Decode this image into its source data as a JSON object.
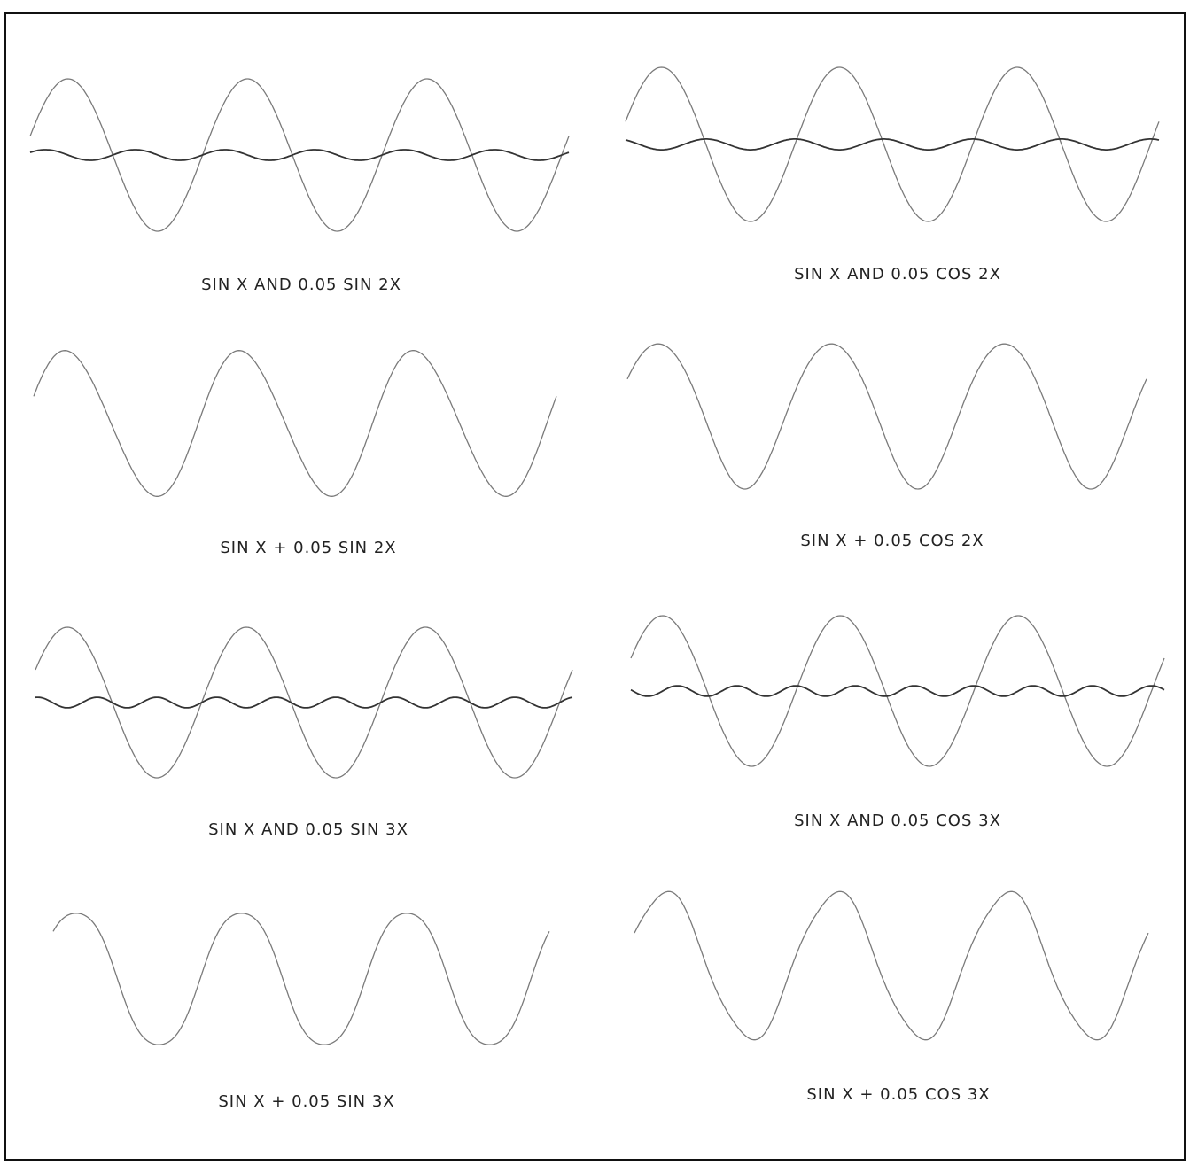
{
  "figure": {
    "panels": [
      {
        "id": "p0",
        "caption": "SIN X AND 0.05 SIN 2X",
        "mode": "pair",
        "harmonic": 2,
        "func": "sin",
        "amplitude": 0.05
      },
      {
        "id": "p1",
        "caption": "SIN X AND 0.05 COS 2X",
        "mode": "pair",
        "harmonic": 2,
        "func": "cos",
        "amplitude": 0.05
      },
      {
        "id": "p2",
        "caption": "SIN X + 0.05 SIN 2X",
        "mode": "sum",
        "harmonic": 2,
        "func": "sin",
        "amplitude": 0.05
      },
      {
        "id": "p3",
        "caption": "SIN X + 0.05 COS 2X",
        "mode": "sum",
        "harmonic": 2,
        "func": "cos",
        "amplitude": 0.05
      },
      {
        "id": "p4",
        "caption": "SIN X AND 0.05 SIN 3X",
        "mode": "pair",
        "harmonic": 3,
        "func": "sin",
        "amplitude": 0.05
      },
      {
        "id": "p5",
        "caption": "SIN X AND 0.05 COS 3X",
        "mode": "pair",
        "harmonic": 3,
        "func": "cos",
        "amplitude": 0.05
      },
      {
        "id": "p6",
        "caption": "SIN X + 0.05 SIN 3X",
        "mode": "sum",
        "harmonic": 3,
        "func": "sin",
        "amplitude": 0.05
      },
      {
        "id": "p7",
        "caption": "SIN X + 0.05 COS 3X",
        "mode": "sum",
        "harmonic": 3,
        "func": "cos",
        "amplitude": 0.05
      }
    ],
    "colors": {
      "fundamental": "#7a7a7a",
      "harmonic": "#333333",
      "frame": "#111111"
    }
  }
}
